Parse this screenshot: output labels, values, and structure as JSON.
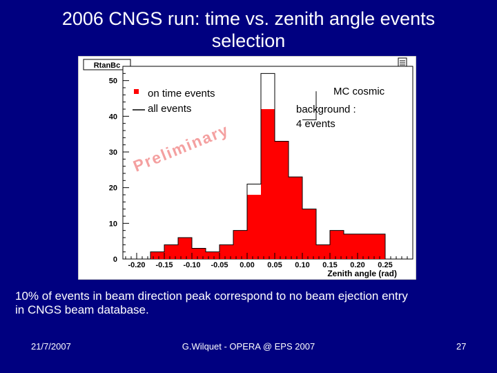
{
  "slide": {
    "title_line1": "2006 CNGS run: time vs. zenith angle events",
    "title_line2": "selection",
    "caption_line1": "10% of events in beam direction peak correspond to no beam ejection entry",
    "caption_line2": "in CNGS beam database.",
    "footer_date": "21/7/2007",
    "footer_center": "G.Wilquet - OPERA @ EPS 2007",
    "footer_page": "27"
  },
  "colors": {
    "background": "#000080",
    "ontime_fill": "#ff0000",
    "plot_bg": "#ffffff"
  },
  "chart_data": {
    "type": "bar",
    "canvas_title": "RtanBc",
    "xlabel": "Zenith angle (rad)",
    "ylabel": "",
    "xlim": [
      -0.225,
      0.3
    ],
    "ylim": [
      0,
      54
    ],
    "x_ticks": [
      "-0.20",
      "-0.15",
      "-0.10",
      "-0.05",
      "0.00",
      "0.05",
      "0.10",
      "0.15",
      "0.20",
      "0.25"
    ],
    "y_ticks": [
      "0",
      "10",
      "20",
      "30",
      "40",
      "50"
    ],
    "bin_edges": [
      -0.225,
      -0.2,
      -0.175,
      -0.15,
      -0.125,
      -0.1,
      -0.075,
      -0.05,
      -0.025,
      0,
      0.025,
      0.05,
      0.075,
      0.1,
      0.125,
      0.15,
      0.175,
      0.2,
      0.225,
      0.25,
      0.275,
      0.3
    ],
    "series": [
      {
        "name": "on time events",
        "style": "filled",
        "values": [
          0,
          0,
          2,
          4,
          6,
          3,
          2,
          4,
          8,
          18,
          42,
          33,
          23,
          14,
          4,
          8,
          7,
          7,
          7,
          0,
          0
        ]
      },
      {
        "name": "all events",
        "style": "outline",
        "values": [
          0,
          0,
          2,
          4,
          6,
          3,
          2,
          4,
          8,
          21,
          52,
          33,
          23,
          14,
          4,
          8,
          7,
          7,
          7,
          0,
          0
        ]
      }
    ],
    "legend_position": "top-left",
    "annotations": [
      "MC cosmic",
      "background :",
      "4 events"
    ],
    "watermark": "Preliminary"
  }
}
